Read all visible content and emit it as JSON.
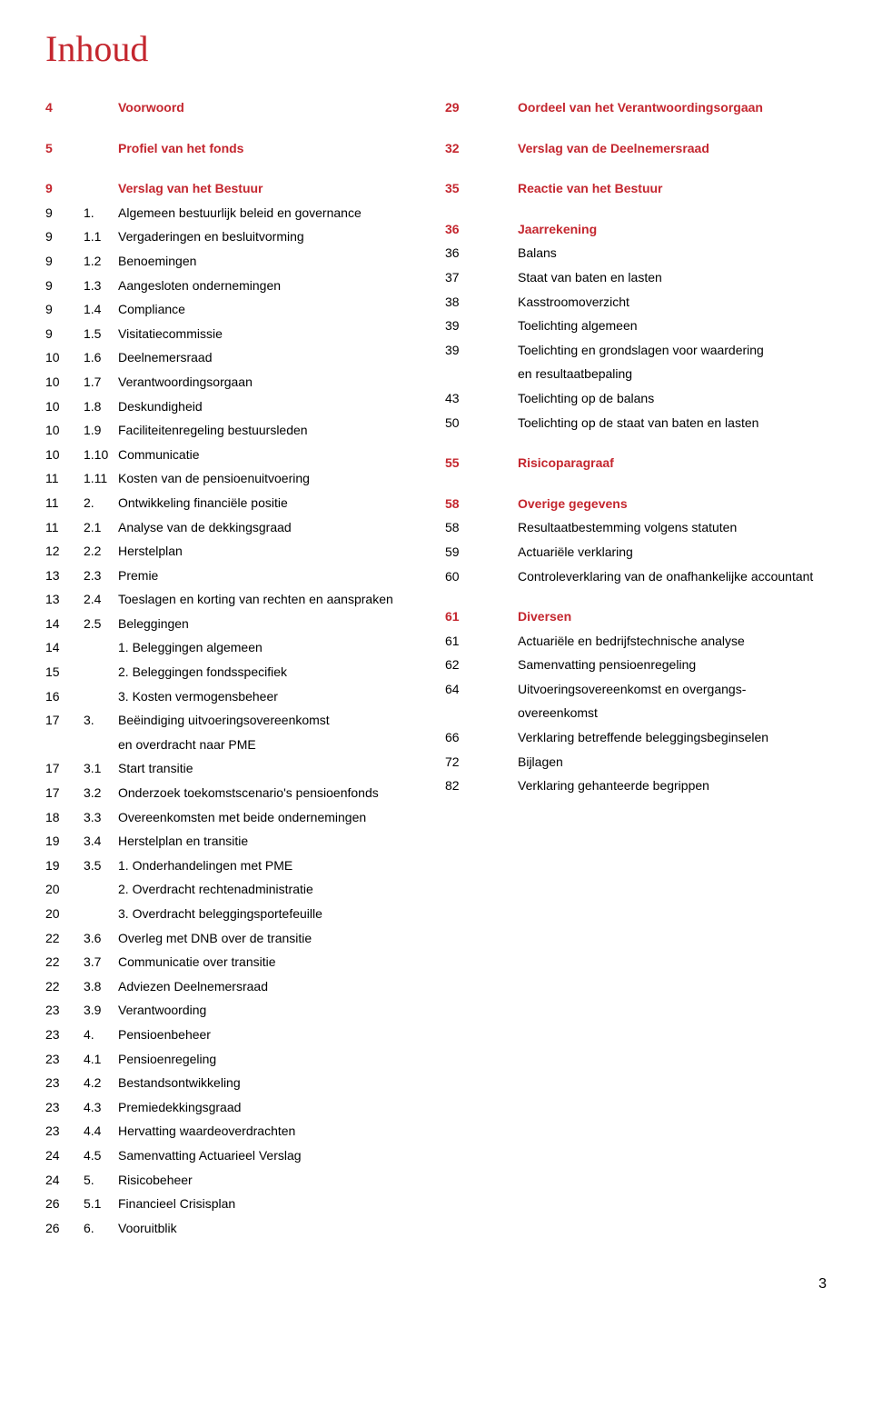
{
  "title": "Inhoud",
  "colors": {
    "accent": "#c4262e",
    "text": "#000000",
    "background": "#ffffff"
  },
  "left": [
    {
      "page": "4",
      "num": "",
      "label": "Voorwoord",
      "heading": true
    },
    {
      "spacer": true
    },
    {
      "page": "5",
      "num": "",
      "label": "Profiel van het fonds",
      "heading": true
    },
    {
      "spacer": true
    },
    {
      "page": "9",
      "num": "",
      "label": "Verslag van het Bestuur",
      "heading": true
    },
    {
      "page": "9",
      "num": "1.",
      "label": "Algemeen bestuurlijk beleid en governance"
    },
    {
      "page": "9",
      "num": "1.1",
      "label": "Vergaderingen en besluitvorming"
    },
    {
      "page": "9",
      "num": "1.2",
      "label": "Benoemingen"
    },
    {
      "page": "9",
      "num": "1.3",
      "label": "Aangesloten ondernemingen"
    },
    {
      "page": "9",
      "num": "1.4",
      "label": "Compliance"
    },
    {
      "page": "9",
      "num": "1.5",
      "label": "Visitatiecommissie"
    },
    {
      "page": "10",
      "num": "1.6",
      "label": "Deelnemersraad"
    },
    {
      "page": "10",
      "num": "1.7",
      "label": "Verantwoordingsorgaan"
    },
    {
      "page": "10",
      "num": "1.8",
      "label": "Deskundigheid"
    },
    {
      "page": "10",
      "num": "1.9",
      "label": "Faciliteitenregeling bestuursleden"
    },
    {
      "page": "10",
      "num": "1.10",
      "label": "Communicatie"
    },
    {
      "page": "11",
      "num": "1.11",
      "label": "Kosten van de pensioenuitvoering"
    },
    {
      "page": "11",
      "num": "2.",
      "label": "Ontwikkeling financiële positie"
    },
    {
      "page": "11",
      "num": "2.1",
      "label": "Analyse van de dekkingsgraad"
    },
    {
      "page": "12",
      "num": "2.2",
      "label": "Herstelplan"
    },
    {
      "page": "13",
      "num": "2.3",
      "label": "Premie"
    },
    {
      "page": "13",
      "num": "2.4",
      "label": "Toeslagen en korting van rechten en aanspraken"
    },
    {
      "page": "14",
      "num": "2.5",
      "label": "Beleggingen"
    },
    {
      "page": "14",
      "num": "",
      "label": "1.  Beleggingen algemeen"
    },
    {
      "page": "15",
      "num": "",
      "label": "2.  Beleggingen fondsspecifiek"
    },
    {
      "page": "16",
      "num": "",
      "label": "3.  Kosten vermogensbeheer"
    },
    {
      "page": "17",
      "num": "3.",
      "label": "Beëindiging uitvoeringsovereenkomst"
    },
    {
      "page": "",
      "num": "",
      "label": "en overdracht naar PME"
    },
    {
      "page": "17",
      "num": "3.1",
      "label": "Start transitie"
    },
    {
      "page": "17",
      "num": "3.2",
      "label": "Onderzoek toekomstscenario's pensioenfonds"
    },
    {
      "page": "18",
      "num": "3.3",
      "label": "Overeenkomsten met beide ondernemingen"
    },
    {
      "page": "19",
      "num": "3.4",
      "label": "Herstelplan en transitie"
    },
    {
      "page": "19",
      "num": "3.5",
      "label": "1.  Onderhandelingen met PME"
    },
    {
      "page": "20",
      "num": "",
      "label": "2.  Overdracht rechtenadministratie"
    },
    {
      "page": "20",
      "num": "",
      "label": "3.  Overdracht beleggingsportefeuille"
    },
    {
      "page": "22",
      "num": "3.6",
      "label": "Overleg met DNB over de transitie"
    },
    {
      "page": "22",
      "num": "3.7",
      "label": "Communicatie over transitie"
    },
    {
      "page": "22",
      "num": "3.8",
      "label": "Adviezen Deelnemersraad"
    },
    {
      "page": "23",
      "num": "3.9",
      "label": "Verantwoording"
    },
    {
      "page": "23",
      "num": "4.",
      "label": "Pensioenbeheer"
    },
    {
      "page": "23",
      "num": "4.1",
      "label": "Pensioenregeling"
    },
    {
      "page": "23",
      "num": "4.2",
      "label": "Bestandsontwikkeling"
    },
    {
      "page": "23",
      "num": "4.3",
      "label": "Premiedekkingsgraad"
    },
    {
      "page": "23",
      "num": "4.4",
      "label": "Hervatting waardeoverdrachten"
    },
    {
      "page": "24",
      "num": "4.5",
      "label": "Samenvatting Actuarieel Verslag"
    },
    {
      "page": "24",
      "num": "5.",
      "label": "Risicobeheer"
    },
    {
      "page": "26",
      "num": "5.1",
      "label": "Financieel Crisisplan"
    },
    {
      "page": "26",
      "num": "6.",
      "label": "Vooruitblik"
    }
  ],
  "right": [
    {
      "page": "29",
      "num": "",
      "label": "Oordeel van het Verantwoordingsorgaan",
      "heading": true
    },
    {
      "spacer": true
    },
    {
      "page": "32",
      "num": "",
      "label": "Verslag van de Deelnemersraad",
      "heading": true
    },
    {
      "spacer": true
    },
    {
      "page": "35",
      "num": "",
      "label": "Reactie van het Bestuur",
      "heading": true
    },
    {
      "spacer": true
    },
    {
      "page": "36",
      "num": "",
      "label": "Jaarrekening",
      "heading": true
    },
    {
      "page": "36",
      "num": "",
      "label": "Balans"
    },
    {
      "page": "37",
      "num": "",
      "label": "Staat van baten en lasten"
    },
    {
      "page": "38",
      "num": "",
      "label": "Kasstroomoverzicht"
    },
    {
      "page": "39",
      "num": "",
      "label": "Toelichting algemeen"
    },
    {
      "page": "39",
      "num": "",
      "label": "Toelichting en grondslagen voor waardering"
    },
    {
      "page": "",
      "num": "",
      "label": "en resultaatbepaling"
    },
    {
      "page": "43",
      "num": "",
      "label": "Toelichting op de balans"
    },
    {
      "page": "50",
      "num": "",
      "label": "Toelichting op de staat van baten en lasten"
    },
    {
      "spacer": true
    },
    {
      "page": "55",
      "num": "",
      "label": "Risicoparagraaf",
      "heading": true
    },
    {
      "spacer": true
    },
    {
      "page": "58",
      "num": "",
      "label": "Overige gegevens",
      "heading": true
    },
    {
      "page": "58",
      "num": "",
      "label": "Resultaatbestemming volgens statuten"
    },
    {
      "page": "59",
      "num": "",
      "label": "Actuariële verklaring"
    },
    {
      "page": "60",
      "num": "",
      "label": "Controleverklaring van de onafhankelijke accountant"
    },
    {
      "spacer": true
    },
    {
      "page": "61",
      "num": "",
      "label": "Diversen",
      "heading": true
    },
    {
      "page": "61",
      "num": "",
      "label": "Actuariële en bedrijfstechnische analyse"
    },
    {
      "page": "62",
      "num": "",
      "label": "Samenvatting pensioenregeling"
    },
    {
      "page": "64",
      "num": "",
      "label": "Uitvoeringsovereenkomst en overgangs-"
    },
    {
      "page": "",
      "num": "",
      "label": "overeenkomst"
    },
    {
      "page": "66",
      "num": "",
      "label": "Verklaring betreffende beleggingsbeginselen"
    },
    {
      "page": "72",
      "num": "",
      "label": "Bijlagen"
    },
    {
      "page": "82",
      "num": "",
      "label": "Verklaring gehanteerde begrippen"
    }
  ],
  "footerPage": "3"
}
